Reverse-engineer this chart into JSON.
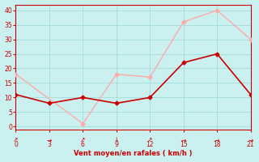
{
  "xlabel": "Vent moyen/en rafales ( km/h )",
  "background_color": "#caf0f0",
  "grid_color": "#a8dede",
  "xlim": [
    0,
    21
  ],
  "ylim": [
    -1,
    42
  ],
  "xticks": [
    0,
    3,
    6,
    9,
    12,
    15,
    18,
    21
  ],
  "yticks": [
    0,
    5,
    10,
    15,
    20,
    25,
    30,
    35,
    40
  ],
  "line_light": {
    "x": [
      0,
      6,
      9,
      12,
      15,
      18,
      21
    ],
    "y": [
      18,
      1,
      18,
      17,
      36,
      40,
      30
    ],
    "color": "#ffaaaa",
    "linewidth": 1.0,
    "marker": "D",
    "markersize": 2.5
  },
  "line_dark": {
    "x": [
      0,
      3,
      6,
      9,
      12,
      15,
      18,
      21
    ],
    "y": [
      11,
      8,
      10,
      8,
      10,
      22,
      25,
      11
    ],
    "color": "#cc0000",
    "linewidth": 1.2,
    "marker": "D",
    "markersize": 2.5
  },
  "arrow_annotations": [
    {
      "x": 0,
      "sym": "↗"
    },
    {
      "x": 3,
      "sym": "→"
    },
    {
      "x": 6,
      "sym": "↗"
    },
    {
      "x": 9,
      "sym": "↓"
    },
    {
      "x": 12,
      "sym": "↗"
    },
    {
      "x": 15,
      "sym": "→"
    },
    {
      "x": 18,
      "sym": "→"
    },
    {
      "x": 21,
      "sym": "→"
    }
  ]
}
